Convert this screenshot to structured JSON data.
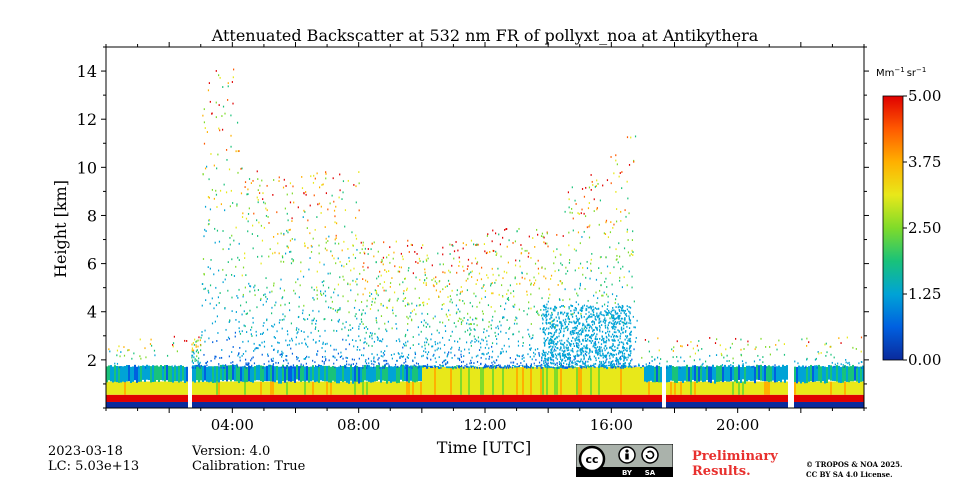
{
  "chart_data": {
    "type": "heatmap",
    "title": "Attenuated Backscatter at 532 nm FR of pollyxt_noa at Antikythera",
    "xlabel": "Time [UTC]",
    "ylabel": "Height [km]",
    "xlim": [
      0,
      24
    ],
    "ylim": [
      0,
      15
    ],
    "x_ticks": [
      {
        "value": 4,
        "label": "04:00"
      },
      {
        "value": 8,
        "label": "08:00"
      },
      {
        "value": 12,
        "label": "12:00"
      },
      {
        "value": 16,
        "label": "16:00"
      },
      {
        "value": 20,
        "label": "20:00"
      }
    ],
    "y_ticks": [
      {
        "value": 2,
        "label": "2"
      },
      {
        "value": 4,
        "label": "4"
      },
      {
        "value": 6,
        "label": "6"
      },
      {
        "value": 8,
        "label": "8"
      },
      {
        "value": 10,
        "label": "10"
      },
      {
        "value": 12,
        "label": "12"
      },
      {
        "value": 14,
        "label": "14"
      }
    ],
    "colorbar": {
      "unit_prefix": "Mm",
      "unit_mid": "sr",
      "unit_exp": "−1",
      "range": [
        0,
        5
      ],
      "ticks": [
        {
          "value": 0,
          "label": "0.00"
        },
        {
          "value": 1.25,
          "label": "1.25"
        },
        {
          "value": 2.5,
          "label": "2.50"
        },
        {
          "value": 3.75,
          "label": "3.75"
        },
        {
          "value": 5,
          "label": "5.00"
        }
      ],
      "colormap": [
        "#0a2a9c",
        "#0060e0",
        "#00a3d6",
        "#19c27a",
        "#7fdb2a",
        "#e8e81a",
        "#ffb000",
        "#ff5a00",
        "#e00000"
      ]
    },
    "data_gaps_hours": [
      [
        2.55,
        2.7
      ],
      [
        17.55,
        17.7
      ],
      [
        21.55,
        21.75
      ]
    ],
    "boundary_layer_top_km": 1.7,
    "dust_layer_km": [
      0.7,
      1.7
    ],
    "convective_columns_hours": [
      [
        3.0,
        5.0
      ],
      [
        15.0,
        16.6
      ]
    ],
    "max_signal_height_km": 14.2
  },
  "footer": {
    "date": "2023-03-18",
    "lc": "LC: 5.03e+13",
    "version": "Version: 4.0",
    "calibration": "Calibration: True",
    "preliminary_line1": "Preliminary",
    "preliminary_line2": "Results.",
    "copyright_line1": "© TROPOS & NOA 2025.",
    "copyright_line2": "CC BY SA 4.0 License.",
    "cc_label": "cc",
    "by_label": "BY",
    "sa_label": "SA"
  }
}
